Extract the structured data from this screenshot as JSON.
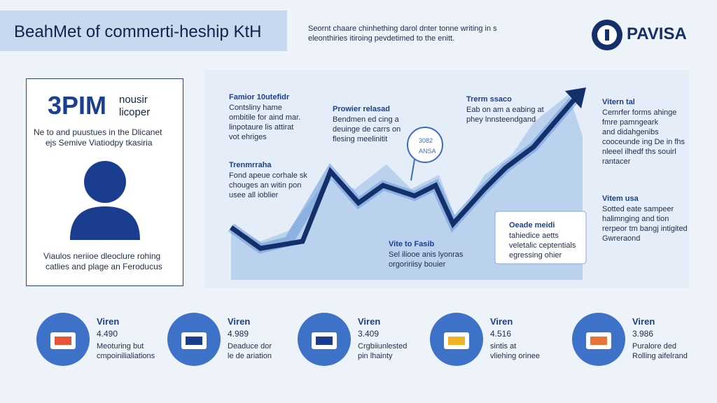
{
  "header": {
    "title": "BeahMet of commerti-heship KtH",
    "subtitle": [
      "Seornt chaare chinhething darol dnter tonne writing in s",
      "eleonthiries itiroing pevdetimed to the enitt."
    ],
    "logo": "PAVISA"
  },
  "profile": {
    "big": "3PIM",
    "side": [
      "nousir",
      "licoper"
    ],
    "intro": [
      "Ne to and puustues in the Dlicanet",
      "ejs Semive Viatiodpy tkasiria"
    ],
    "footer": [
      "Viaulos neriioe dleoclure rohing",
      "catlies and plage an Feroducus"
    ]
  },
  "chart": {
    "bubble": [
      "3082",
      "ANSA"
    ],
    "annotations": [
      {
        "title": "Famior 10utefidr",
        "lines": [
          "Contsliny hame",
          "ombitile for aind mar.",
          "linpotaure lis attirat",
          "vot ehriges"
        ]
      },
      {
        "title": "Trenmrraha",
        "lines": [
          "Fond apeue corhale sk",
          "chouges an witin pon",
          "usee all ioblier"
        ]
      },
      {
        "title": "Prowier relasad",
        "lines": [
          "Bendmen ed cing a",
          "deuinge de carrs on",
          "flesing meelinitit"
        ]
      },
      {
        "title": "Trerm ssaco",
        "lines": [
          "Eab on am a eabing at",
          "phey lnnsteendgand"
        ]
      },
      {
        "title": "Vitern tal",
        "lines": [
          "Cemrfer forms ahinge",
          "fmre pamngeark",
          "and didahgenibs",
          "cooceunde ing De in fhs",
          "nleeel ilhedf ths souirl",
          "rantacer"
        ]
      },
      {
        "title": "Vite to Fasib",
        "lines": [
          "Sel iliooe anis lyonras",
          "orgoririisy bouier"
        ]
      },
      {
        "title": "Oeade meidi",
        "lines": [
          "tahiedice aetts",
          "veletalic ceptentials",
          "egressing ohier"
        ]
      },
      {
        "title": "Vitem usa",
        "lines": [
          "Sotted eate sampeer",
          "halimnging and tion",
          "rerpeor tm bangj intigited",
          "Gwreraond"
        ]
      }
    ]
  },
  "stats": [
    {
      "label": "Viren",
      "value": "4.490",
      "lines": [
        "Meoturing but",
        "cmpoinilialiations"
      ]
    },
    {
      "label": "Viren",
      "value": "4.989",
      "lines": [
        "Deaduce dor",
        "le de ariation"
      ]
    },
    {
      "label": "Viren",
      "value": "3.409",
      "lines": [
        "Crgbiiunlested",
        "pin lhainty"
      ]
    },
    {
      "label": "Viren",
      "value": "4.516",
      "lines": [
        "sintis at",
        "vliehing orinee"
      ]
    },
    {
      "label": "Viren",
      "value": "3.986",
      "lines": [
        "Puralore ded",
        "Rolling aifelrand"
      ]
    }
  ]
}
